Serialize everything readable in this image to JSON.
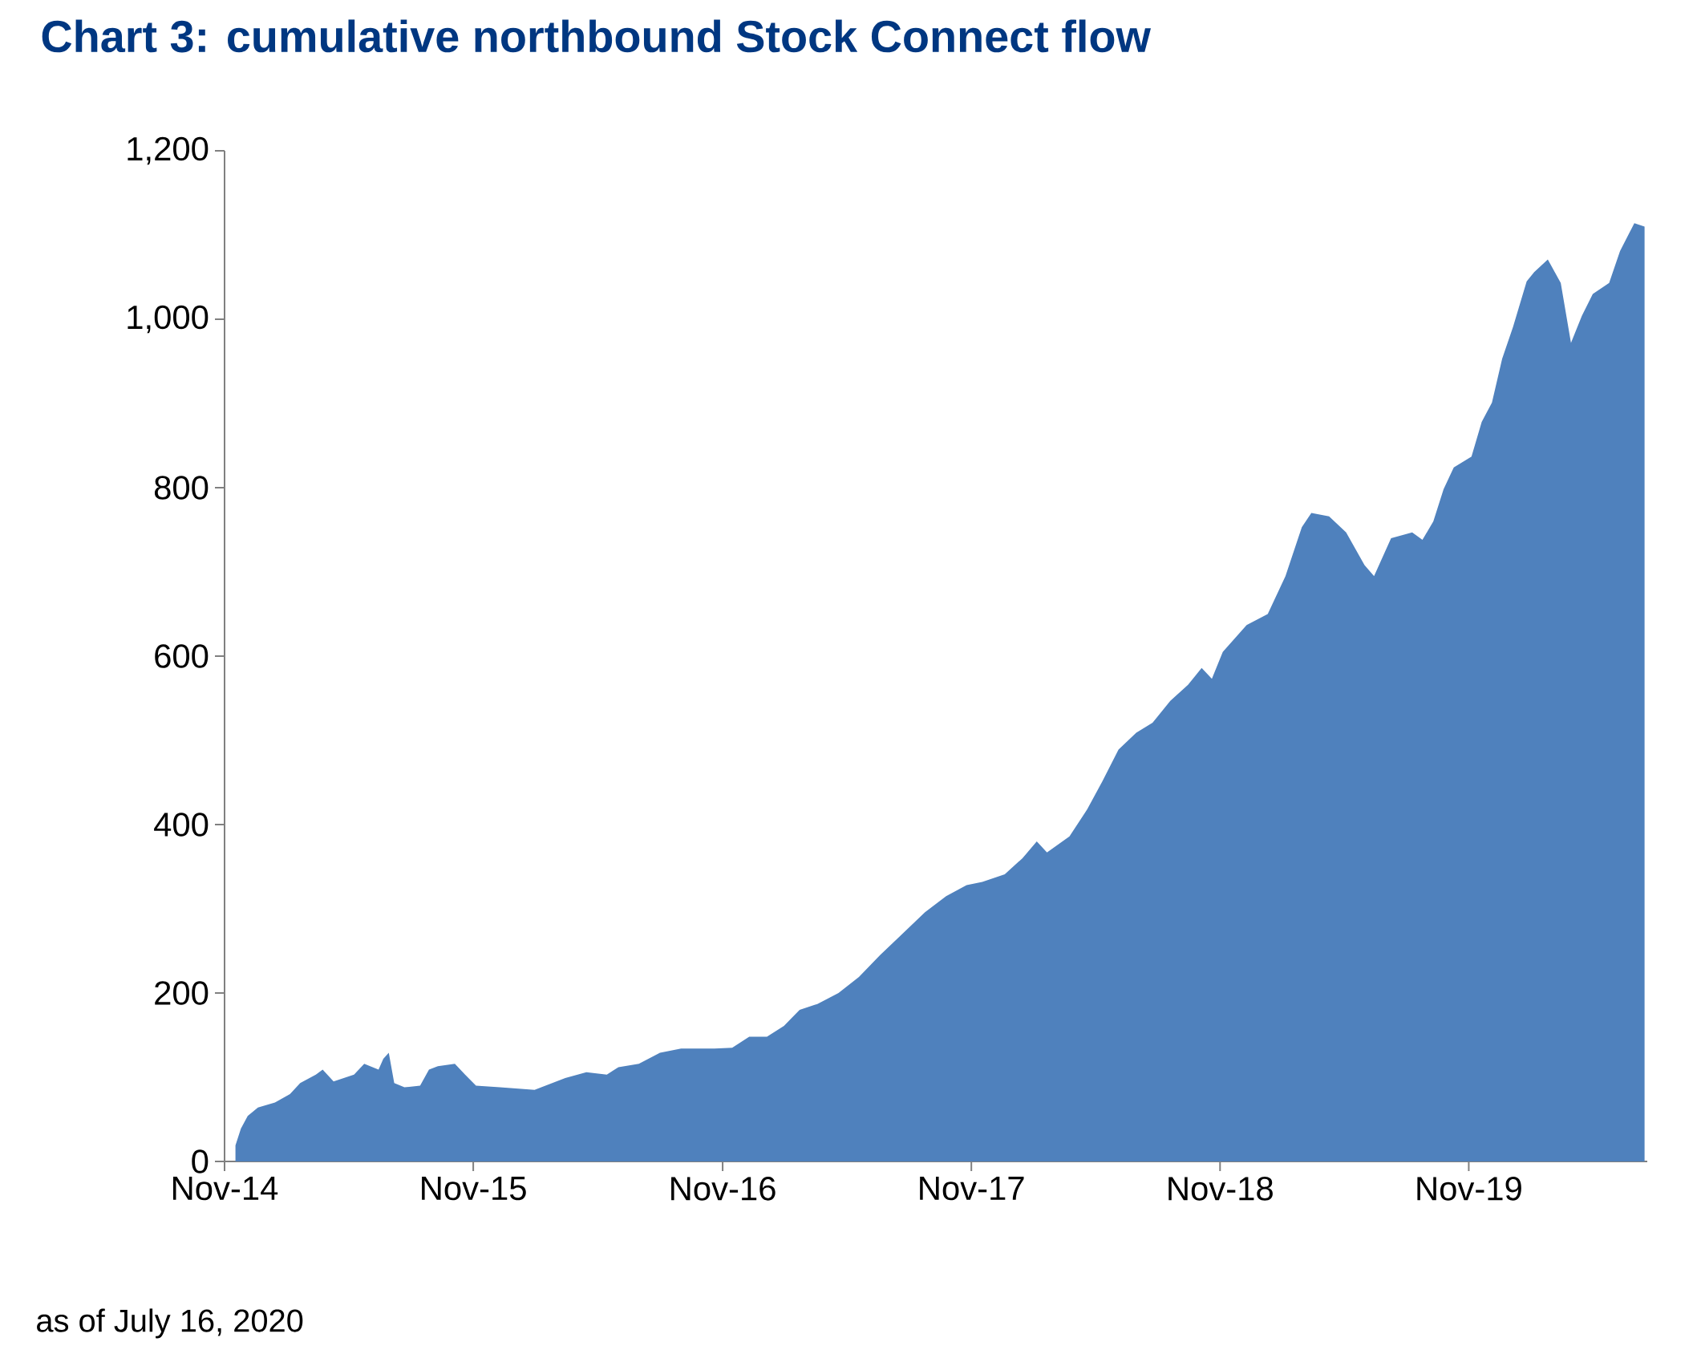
{
  "chart_data": {
    "type": "area",
    "title": "Chart 3: cumulative northbound Stock Connect flow",
    "annotations": [
      "as of July 16, 2020"
    ],
    "color": "#4f81bd",
    "x": [
      "2014-11-17",
      "2014-11-25",
      "2014-12-05",
      "2014-12-20",
      "2015-01-14",
      "2015-02-05",
      "2015-02-20",
      "2015-03-15",
      "2015-03-25",
      "2015-04-10",
      "2015-05-10",
      "2015-05-25",
      "2015-06-15",
      "2015-06-22",
      "2015-06-30",
      "2015-07-08",
      "2015-07-23",
      "2015-08-15",
      "2015-08-28",
      "2015-09-10",
      "2015-10-05",
      "2015-10-20",
      "2015-11-05",
      "2015-12-10",
      "2016-01-30",
      "2016-02-15",
      "2016-03-15",
      "2016-04-15",
      "2016-05-15",
      "2016-06-01",
      "2016-07-01",
      "2016-08-01",
      "2016-09-01",
      "2016-10-20",
      "2016-11-15",
      "2016-12-10",
      "2017-01-05",
      "2017-01-30",
      "2017-02-22",
      "2017-03-20",
      "2017-04-20",
      "2017-05-20",
      "2017-06-20",
      "2017-07-20",
      "2017-08-25",
      "2017-09-25",
      "2017-10-25",
      "2017-11-17",
      "2017-12-20",
      "2018-01-15",
      "2018-02-05",
      "2018-02-20",
      "2018-03-25",
      "2018-04-20",
      "2018-05-12",
      "2018-06-05",
      "2018-07-01",
      "2018-07-25",
      "2018-08-20",
      "2018-09-15",
      "2018-10-05",
      "2018-10-20",
      "2018-11-05",
      "2018-12-10",
      "2019-01-10",
      "2019-02-05",
      "2019-03-01",
      "2019-03-15",
      "2019-04-10",
      "2019-05-05",
      "2019-06-01",
      "2019-06-15",
      "2019-07-10",
      "2019-08-10",
      "2019-08-25",
      "2019-09-10",
      "2019-09-25",
      "2019-10-10",
      "2019-11-05",
      "2019-11-20",
      "2019-12-05",
      "2019-12-20",
      "2020-01-05",
      "2020-01-25",
      "2020-02-05",
      "2020-02-25",
      "2020-03-15",
      "2020-03-30",
      "2020-04-15",
      "2020-05-01",
      "2020-05-25",
      "2020-06-10",
      "2020-07-01",
      "2020-07-16"
    ],
    "values": [
      19,
      39,
      54,
      64,
      70,
      80,
      93,
      103,
      109,
      95,
      103,
      116,
      109,
      122,
      129,
      93,
      88,
      90,
      109,
      113,
      116,
      103,
      90,
      88,
      85,
      90,
      99,
      106,
      103,
      112,
      116,
      129,
      134,
      134,
      135,
      148,
      148,
      161,
      180,
      187,
      200,
      219,
      245,
      268,
      296,
      315,
      328,
      332,
      341,
      360,
      380,
      367,
      386,
      418,
      451,
      489,
      509,
      521,
      547,
      566,
      586,
      573,
      605,
      637,
      650,
      695,
      753,
      770,
      766,
      747,
      708,
      695,
      740,
      747,
      738,
      760,
      798,
      824,
      837,
      878,
      901,
      953,
      991,
      1045,
      1056,
      1071,
      1043,
      972,
      1004,
      1030,
      1043,
      1081,
      1114,
      1110
    ],
    "xlim": [
      "2014-11-01",
      "2020-07-20"
    ],
    "xticks": [
      {
        "value": "2014-11",
        "label": "Nov-14"
      },
      {
        "value": "2015-11",
        "label": "Nov-15"
      },
      {
        "value": "2016-11",
        "label": "Nov-16"
      },
      {
        "value": "2017-11",
        "label": "Nov-17"
      },
      {
        "value": "2018-11",
        "label": "Nov-18"
      },
      {
        "value": "2019-11",
        "label": "Nov-19"
      }
    ],
    "ylim": [
      0,
      1200
    ],
    "yticks": [
      0,
      200,
      400,
      600,
      800,
      {
        "value": 1000,
        "label": "1,000"
      },
      {
        "value": 1200,
        "label": "1,200"
      }
    ]
  }
}
